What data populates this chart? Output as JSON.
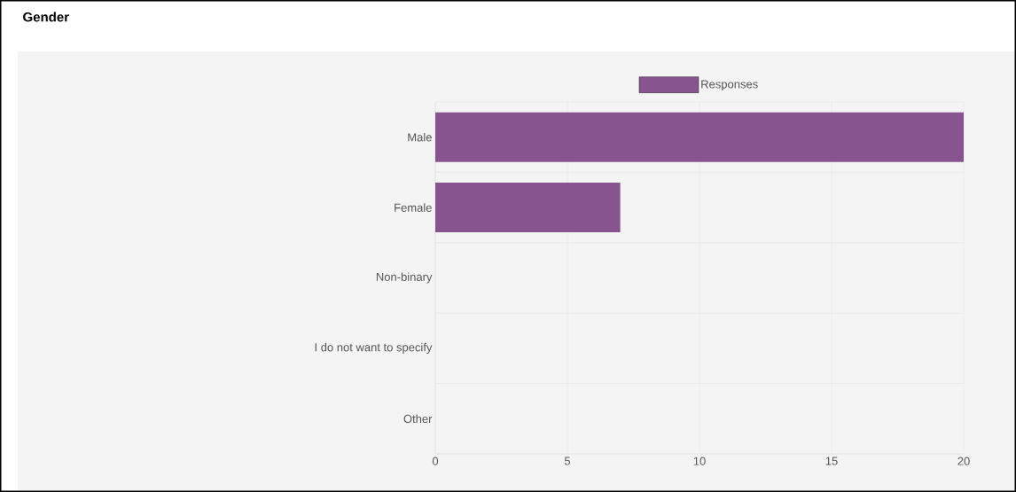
{
  "chart_data": {
    "type": "bar",
    "title": "Gender",
    "orientation": "horizontal",
    "categories": [
      "Male",
      "Female",
      "Non-binary",
      "I do not want to specify",
      "Other"
    ],
    "series": [
      {
        "name": "Responses",
        "color": "#88548f",
        "values": [
          20,
          7,
          0,
          0,
          0
        ]
      }
    ],
    "xlim": [
      0,
      20
    ],
    "xticks": [
      0,
      5,
      10,
      15,
      20
    ],
    "grid": true,
    "legend": "top"
  }
}
